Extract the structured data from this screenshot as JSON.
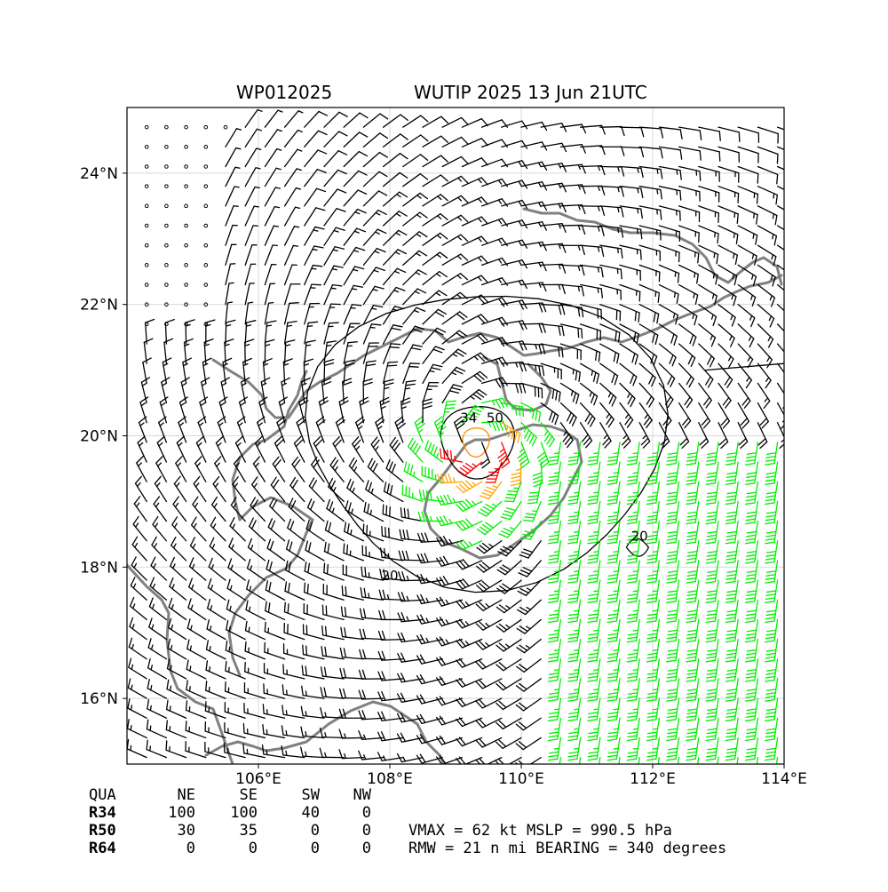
{
  "header": {
    "storm_id": "WP012025",
    "storm_label": "WUTIP 2025 13 Jun 21UTC"
  },
  "map": {
    "lon_range": [
      104.0,
      114.0
    ],
    "lat_range": [
      15.0,
      25.0
    ],
    "lon_ticks": [
      {
        "value": 106,
        "label": "106°E"
      },
      {
        "value": 108,
        "label": "108°E"
      },
      {
        "value": 110,
        "label": "110°E"
      },
      {
        "value": 112,
        "label": "112°E"
      },
      {
        "value": 114,
        "label": "114°E"
      }
    ],
    "lat_ticks": [
      {
        "value": 16,
        "label": "16°N"
      },
      {
        "value": 18,
        "label": "18°N"
      },
      {
        "value": 20,
        "label": "20°N"
      },
      {
        "value": 22,
        "label": "22°N"
      },
      {
        "value": 24,
        "label": "24°N"
      }
    ],
    "grid": true,
    "storm_center": {
      "lon": 109.3,
      "lat": 19.9
    },
    "wind_colors": {
      "below_34": "#000000",
      "kt34_50": "#00ee00",
      "kt50_64": "#ffa500",
      "kt64_plus": "#ff0000"
    },
    "coast_color": "#808080",
    "contour_labels": [
      {
        "text": "20",
        "lon": 108.0,
        "lat": 17.8
      },
      {
        "text": "20",
        "lon": 111.8,
        "lat": 18.4
      },
      {
        "text": "34",
        "lon": 109.2,
        "lat": 20.2
      },
      {
        "text": "50",
        "lon": 109.6,
        "lat": 20.2
      }
    ]
  },
  "wind_radii_table": {
    "header": [
      "QUA",
      "NE",
      "SE",
      "SW",
      "NW"
    ],
    "rows": [
      {
        "label": "R34",
        "values": [
          "100",
          "100",
          "40",
          "0"
        ]
      },
      {
        "label": "R50",
        "values": [
          "30",
          "35",
          "0",
          "0"
        ]
      },
      {
        "label": "R64",
        "values": [
          "0",
          "0",
          "0",
          "0"
        ]
      }
    ]
  },
  "storm_info": {
    "line1": "VMAX =  62 kt MSLP = 990.5 hPa",
    "line2": "RMW =  21 n mi BEARING = 340 degrees"
  }
}
